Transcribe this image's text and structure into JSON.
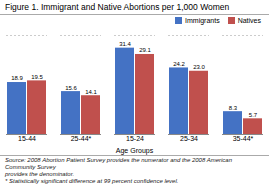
{
  "chart_data": {
    "type": "bar",
    "title": "Figure 1. Immigrant and Native Abortions per 1,000 Women",
    "categories": [
      "15-44",
      "25-44*",
      "15-24",
      "25-34",
      "35-44*"
    ],
    "series": [
      {
        "name": "Immigrants",
        "color": "#4472C4",
        "values": [
          18.9,
          15.6,
          31.4,
          24.2,
          8.3
        ],
        "value_labels": [
          "18.9",
          "15.6",
          "31.4",
          "24.2",
          "8.3"
        ]
      },
      {
        "name": "Natives",
        "color": "#C0504D",
        "values": [
          19.5,
          14.1,
          29.1,
          23.0,
          5.7
        ],
        "value_labels": [
          "19.5",
          "14.1",
          "29.1",
          "23.0",
          "5.7"
        ]
      }
    ],
    "xlabel": "Age Groups",
    "ylim": [
      0,
      36
    ],
    "tick_labels": "x",
    "data_labels": true,
    "legend": "upper right",
    "annotations": [
      "Source: 2008 Abortion Patient Survey provides the numerator and the 2008 American Community Survey",
      "provides the denominator.",
      "* Statistically significant difference at 99 percent confidence level."
    ]
  }
}
